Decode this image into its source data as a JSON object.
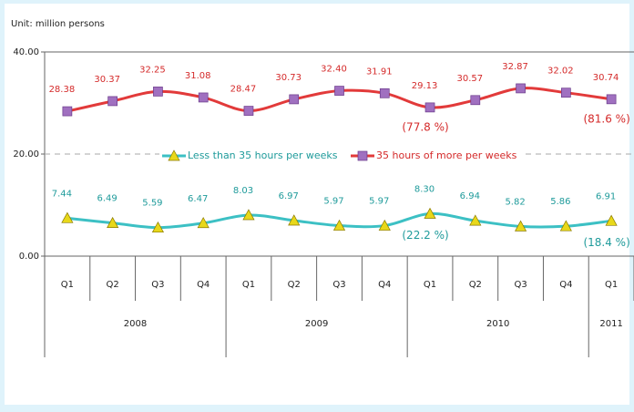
{
  "chart_data": {
    "type": "line",
    "subtitle": "Unit: million persons",
    "categories": [
      "Q1",
      "Q2",
      "Q3",
      "Q4",
      "Q1",
      "Q2",
      "Q3",
      "Q4",
      "Q1",
      "Q2",
      "Q3",
      "Q4",
      "Q1"
    ],
    "years": [
      "2008",
      "2009",
      "2010",
      "2011"
    ],
    "ylim": [
      0,
      40
    ],
    "yticks": [
      {
        "value": 0,
        "label": "0.00"
      },
      {
        "value": 20,
        "label": "20.00"
      },
      {
        "value": 40,
        "label": "40.00"
      }
    ],
    "grid": true,
    "series": [
      {
        "name": "Less than 35 hours per weeks",
        "color": "#3cc0c4",
        "marker_color": "#e8d81a",
        "values": [
          7.44,
          6.49,
          5.59,
          6.47,
          8.03,
          6.97,
          5.97,
          5.97,
          8.3,
          6.94,
          5.82,
          5.86,
          6.91
        ],
        "value_labels": [
          "7.44",
          "6.49",
          "5.59",
          "6.47",
          "8.03",
          "6.97",
          "5.97",
          "5.97",
          "8.30",
          "6.94",
          "5.82",
          "5.86",
          "6.91"
        ]
      },
      {
        "name": "35 hours of more per weeks",
        "color": "#e23a3a",
        "marker_color": "#a070c0",
        "values": [
          28.38,
          30.37,
          32.25,
          31.08,
          28.47,
          30.73,
          32.4,
          31.91,
          29.13,
          30.57,
          32.87,
          32.02,
          30.74
        ],
        "value_labels": [
          "28.38",
          "30.37",
          "32.25",
          "31.08",
          "28.47",
          "30.73",
          "32.40",
          "31.91",
          "29.13",
          "30.57",
          "32.87",
          "32.02",
          "30.74"
        ]
      }
    ],
    "annotations": [
      "(77.8 %)",
      "(81.6 %)",
      "(22.2 %)",
      "(18.4 %)"
    ]
  }
}
